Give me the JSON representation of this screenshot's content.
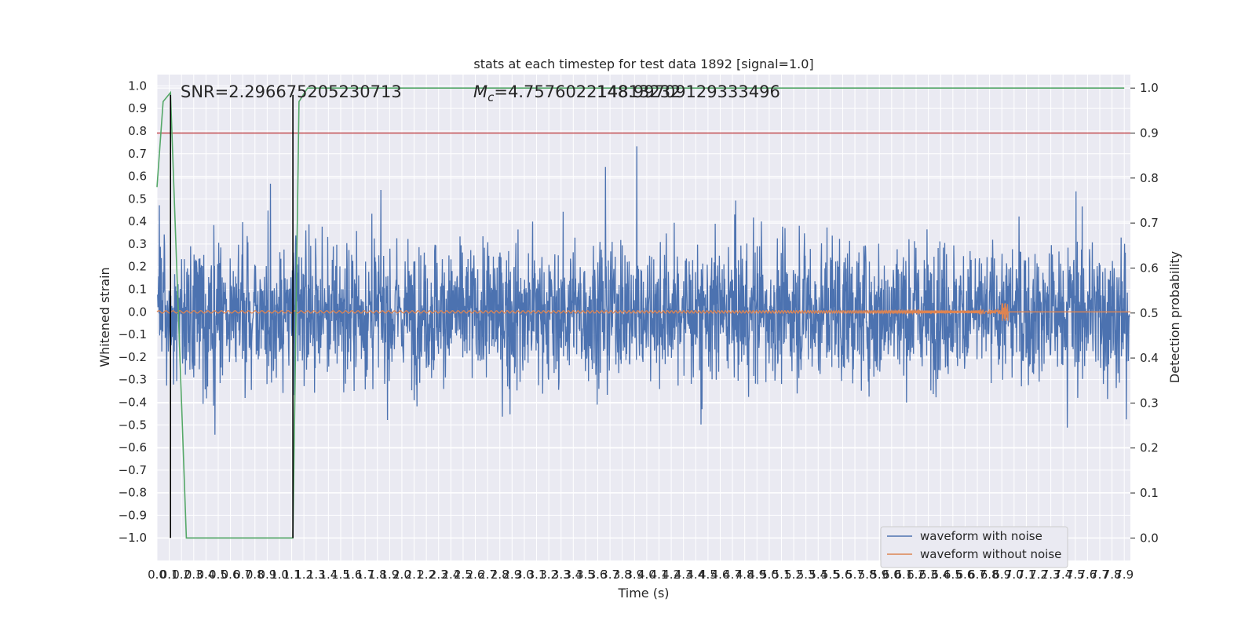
{
  "chart_data": {
    "type": "line",
    "title": "stats at each timestep for test data 1892 [signal=1.0]",
    "xlabel": "Time (s)",
    "ylabel": "Whitened strain",
    "y2label": "Detection probability",
    "xlim": [
      0.0,
      7.95
    ],
    "ylim": [
      -1.1,
      1.05
    ],
    "y2lim": [
      -0.05,
      1.03
    ],
    "x_ticks": [
      "0.0",
      "0.1",
      "0.2",
      "0.3",
      "0.4",
      "0.5",
      "0.6",
      "0.7",
      "0.8",
      "0.9",
      "1.0",
      "1.1",
      "1.2",
      "1.3",
      "1.4",
      "1.5",
      "1.6",
      "1.7",
      "1.8",
      "1.9",
      "2.0",
      "2.1",
      "2.2",
      "2.3",
      "2.4",
      "2.5",
      "2.6",
      "2.7",
      "2.8",
      "2.9",
      "3.0",
      "3.1",
      "3.2",
      "3.3",
      "3.4",
      "3.5",
      "3.6",
      "3.7",
      "3.8",
      "3.9",
      "4.0",
      "4.1",
      "4.2",
      "4.3",
      "4.4",
      "4.5",
      "4.6",
      "4.7",
      "4.8",
      "4.9",
      "5.0",
      "5.1",
      "5.2",
      "5.3",
      "5.4",
      "5.5",
      "5.6",
      "5.7",
      "5.8",
      "5.9",
      "6.0",
      "6.1",
      "6.2",
      "6.3",
      "6.4",
      "6.5",
      "6.6",
      "6.7",
      "6.8",
      "6.9",
      "7.0",
      "7.1",
      "7.2",
      "7.3",
      "7.4",
      "7.5",
      "7.6",
      "7.7",
      "7.8",
      "7.9"
    ],
    "y_ticks": [
      "1.0",
      "0.9",
      "0.8",
      "0.7",
      "0.6",
      "0.5",
      "0.4",
      "0.3",
      "0.2",
      "0.1",
      "0.0",
      "−0.1",
      "−0.2",
      "−0.3",
      "−0.4",
      "−0.5",
      "−0.6",
      "−0.7",
      "−0.8",
      "−0.9",
      "−1.0"
    ],
    "y2_ticks": [
      "1.0",
      "0.9",
      "0.8",
      "0.7",
      "0.6",
      "0.5",
      "0.4",
      "0.3",
      "0.2",
      "0.1",
      "0.0"
    ],
    "annotations": {
      "snr": "SNR=2.296675205230713",
      "mc_prefix": "M",
      "mc_sub": "c",
      "mc_value": "=4.757602214813232",
      "overlap": "148.99709129333496"
    },
    "legend": {
      "placement": "lower-right",
      "entries": [
        "waveform with noise",
        "waveform without noise"
      ]
    },
    "series": [
      {
        "name": "waveform with noise",
        "color": "#4c72b0",
        "amplitude_range": [
          -1.0,
          0.95
        ]
      },
      {
        "name": "waveform without noise",
        "color": "#dd8452",
        "chirp_end_time": 6.95,
        "chirp_peak_amplitude": 0.04
      },
      {
        "color": "#55a868",
        "axis": "right",
        "x": [
          0.0,
          0.05,
          0.11,
          0.24,
          1.06,
          1.11,
          1.16,
          1.23,
          7.9
        ],
        "y": [
          0.78,
          0.97,
          0.99,
          0.0,
          0.0,
          0.0,
          0.97,
          1.0,
          1.0
        ]
      }
    ],
    "threshold": {
      "value": 0.9,
      "axis": "right",
      "color": "#c44e52"
    },
    "vlines": [
      0.11,
      1.11
    ],
    "vline_color": "#000000"
  }
}
